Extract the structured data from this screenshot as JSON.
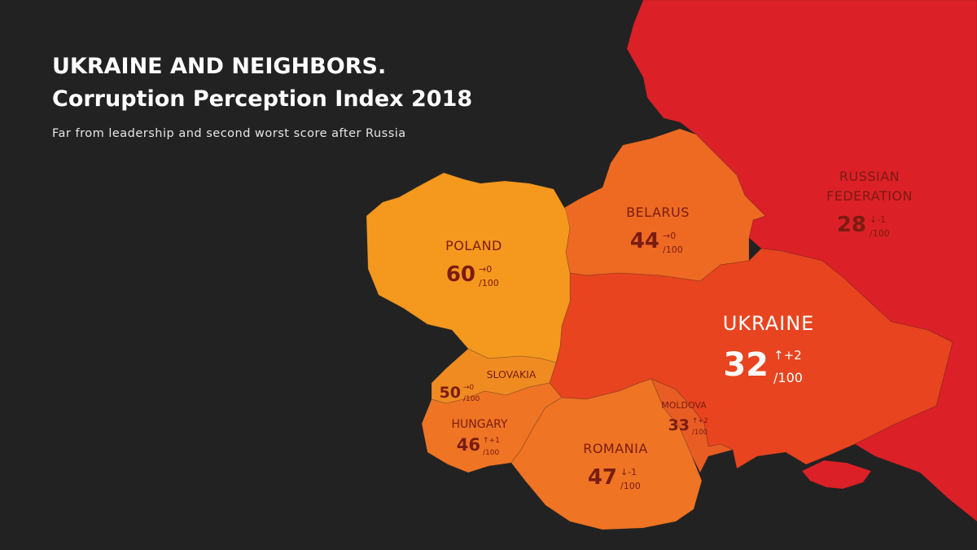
{
  "title_line1": "UKRAINE AND NEIGHBORS.",
  "title_line2": "Corruption Perception Index 2018",
  "subtitle": "Far from leadership and second worst score after Russia",
  "colors": {
    "background": "#222222",
    "russia": "#dc2027",
    "ukraine": "#e8441f",
    "belarus": "#ee6a22",
    "poland": "#f5981e",
    "slovakia": "#f08b22",
    "hungary": "#ef7424",
    "romania": "#ef7424",
    "moldova": "#e85d24",
    "label_dark": "#7a1c12",
    "label_light": "#ffffff"
  },
  "countries": {
    "russia": {
      "name_line1": "RUSSIAN",
      "name_line2": "FEDERATION",
      "score": "28",
      "change": "-1",
      "change_dir": "down",
      "denom": "/100"
    },
    "belarus": {
      "name": "BELARUS",
      "score": "44",
      "change": "0",
      "change_dir": "flat",
      "denom": "/100"
    },
    "poland": {
      "name": "POLAND",
      "score": "60",
      "change": "0",
      "change_dir": "flat",
      "denom": "/100"
    },
    "ukraine": {
      "name": "UKRAINE",
      "score": "32",
      "change": "+2",
      "change_dir": "up",
      "denom": "/100"
    },
    "slovakia": {
      "name": "SLOVAKIA",
      "score": "50",
      "change": "0",
      "change_dir": "flat",
      "denom": "/100"
    },
    "hungary": {
      "name": "HUNGARY",
      "score": "46",
      "change": "+1",
      "change_dir": "up",
      "denom": "/100"
    },
    "romania": {
      "name": "ROMANIA",
      "score": "47",
      "change": "-1",
      "change_dir": "down",
      "denom": "/100"
    },
    "moldova": {
      "name": "MOLDOVA",
      "score": "33",
      "change": "+2",
      "change_dir": "up",
      "denom": "/100"
    }
  }
}
